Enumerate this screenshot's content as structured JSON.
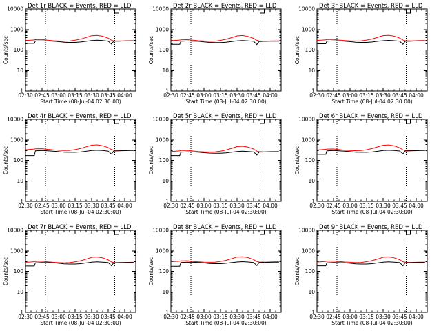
{
  "chart_data": {
    "type": "line",
    "yscale": "log",
    "ylim": [
      1,
      10000
    ],
    "ylabel": "Counts/sec",
    "xlabel": "Start Time (08-Jul-04 02:30:00)",
    "xlim": [
      "02:30",
      "04:10"
    ],
    "x_ticks": [
      "02:30",
      "02:45",
      "03:00",
      "03:15",
      "03:30",
      "03:45",
      "04:00"
    ],
    "y_ticks": [
      "1",
      "10",
      "100",
      "1000",
      "10000"
    ],
    "vertical_markers": [
      "02:48",
      "03:51"
    ],
    "colors": {
      "events": "#000000",
      "lld": "#ff0000"
    },
    "x": [
      "02:30",
      "02:35",
      "02:38",
      "02:39",
      "02:45",
      "02:50",
      "02:55",
      "03:00",
      "03:05",
      "03:10",
      "03:15",
      "03:20",
      "03:25",
      "03:30",
      "03:35",
      "03:40",
      "03:45",
      "03:48",
      "03:50",
      "03:55",
      "04:00",
      "04:05",
      "04:08"
    ],
    "panels": [
      {
        "title": "Det 1r BLACK = Events, RED = LLD",
        "series": [
          {
            "color": "black",
            "values": [
              210,
              210,
              210,
              275,
              280,
              275,
              270,
              255,
              240,
              235,
              235,
              245,
              265,
              290,
              300,
              290,
              270,
              195,
              270,
              270,
              275,
              280,
              280
            ]
          },
          {
            "color": "red",
            "values": [
              290,
              300,
              310,
              320,
              325,
              300,
              285,
              275,
              270,
              275,
              300,
              340,
              410,
              500,
              520,
              470,
              380,
              300,
              280,
              275,
              280,
              285,
              285
            ]
          }
        ]
      },
      {
        "title": "Det 2r BLACK = Events, RED = LLD",
        "series": [
          {
            "color": "black",
            "values": [
              190,
              190,
              190,
              265,
              275,
              270,
              265,
              250,
              235,
              230,
              230,
              240,
              260,
              280,
              290,
              280,
              265,
              185,
              260,
              265,
              270,
              270,
              270
            ]
          },
          {
            "color": "red",
            "values": [
              285,
              295,
              305,
              315,
              320,
              300,
              285,
              275,
              265,
              270,
              295,
              335,
              400,
              490,
              510,
              460,
              370,
              295,
              280,
              270,
              275,
              280,
              280
            ]
          }
        ]
      },
      {
        "title": "Det 3r BLACK = Events, RED = LLD",
        "series": [
          {
            "color": "black",
            "values": [
              200,
              200,
              200,
              270,
              280,
              275,
              270,
              255,
              240,
              235,
              235,
              245,
              265,
              285,
              295,
              285,
              270,
              190,
              265,
              270,
              275,
              275,
              275
            ]
          },
          {
            "color": "red",
            "values": [
              295,
              305,
              315,
              325,
              330,
              305,
              290,
              280,
              275,
              280,
              305,
              345,
              415,
              505,
              525,
              475,
              385,
              305,
              285,
              280,
              285,
              290,
              290
            ]
          }
        ]
      },
      {
        "title": "Det 4r BLACK = Events, RED = LLD",
        "series": [
          {
            "color": "black",
            "values": [
              170,
              170,
              170,
              290,
              300,
              290,
              280,
              265,
              250,
              245,
              245,
              255,
              275,
              300,
              310,
              300,
              280,
              200,
              285,
              290,
              295,
              300,
              300
            ]
          },
          {
            "color": "red",
            "values": [
              330,
              345,
              355,
              365,
              370,
              345,
              325,
              310,
              300,
              305,
              335,
              380,
              460,
              550,
              570,
              515,
              420,
              335,
              315,
              310,
              315,
              320,
              320
            ]
          }
        ]
      },
      {
        "title": "Det 5r BLACK = Events, RED = LLD",
        "series": [
          {
            "color": "black",
            "values": [
              170,
              170,
              170,
              250,
              260,
              255,
              250,
              235,
              225,
              220,
              220,
              230,
              250,
              270,
              280,
              270,
              255,
              180,
              250,
              255,
              260,
              260,
              260
            ]
          },
          {
            "color": "red",
            "values": [
              270,
              280,
              290,
              300,
              305,
              285,
              270,
              260,
              255,
              260,
              280,
              320,
              385,
              470,
              490,
              445,
              355,
              280,
              265,
              260,
              265,
              270,
              270
            ]
          }
        ]
      },
      {
        "title": "Det 6r BLACK = Events, RED = LLD",
        "series": [
          {
            "color": "black",
            "values": [
              195,
              195,
              195,
              290,
              300,
              290,
              280,
              265,
              250,
              245,
              245,
              255,
              275,
              300,
              310,
              300,
              285,
              205,
              285,
              290,
              295,
              300,
              300
            ]
          },
          {
            "color": "red",
            "values": [
              320,
              335,
              345,
              355,
              360,
              335,
              315,
              300,
              295,
              300,
              330,
              375,
              455,
              545,
              565,
              510,
              410,
              325,
              305,
              300,
              305,
              310,
              310
            ]
          }
        ]
      },
      {
        "title": "Det 7r BLACK = Events, RED = LLD",
        "series": [
          {
            "color": "black",
            "values": [
              180,
              180,
              180,
              260,
              270,
              265,
              260,
              245,
              230,
              225,
              225,
              235,
              255,
              280,
              290,
              280,
              265,
              185,
              260,
              265,
              270,
              270,
              270
            ]
          },
          {
            "color": "red",
            "values": [
              275,
              285,
              295,
              305,
              310,
              290,
              275,
              265,
              260,
              265,
              290,
              330,
              395,
              485,
              505,
              455,
              365,
              285,
              270,
              265,
              270,
              275,
              275
            ]
          }
        ]
      },
      {
        "title": "Det 8r BLACK = Events, RED = LLD",
        "series": [
          {
            "color": "black",
            "values": [
              175,
              175,
              175,
              270,
              280,
              275,
              270,
              255,
              240,
              235,
              235,
              245,
              265,
              285,
              295,
              285,
              270,
              190,
              265,
              270,
              275,
              280,
              280
            ]
          },
          {
            "color": "red",
            "values": [
              295,
              305,
              315,
              325,
              330,
              305,
              290,
              280,
              275,
              280,
              305,
              345,
              415,
              500,
              520,
              470,
              380,
              300,
              285,
              280,
              285,
              290,
              290
            ]
          }
        ]
      },
      {
        "title": "Det 9r BLACK = Events, RED = LLD",
        "series": [
          {
            "color": "black",
            "values": [
              185,
              185,
              185,
              260,
              270,
              265,
              260,
              245,
              230,
              225,
              225,
              235,
              255,
              280,
              290,
              280,
              265,
              185,
              260,
              265,
              270,
              270,
              270
            ]
          },
          {
            "color": "red",
            "values": [
              285,
              295,
              305,
              315,
              320,
              300,
              285,
              275,
              265,
              270,
              295,
              335,
              400,
              490,
              510,
              460,
              370,
              295,
              280,
              270,
              275,
              280,
              280
            ]
          }
        ]
      }
    ]
  }
}
